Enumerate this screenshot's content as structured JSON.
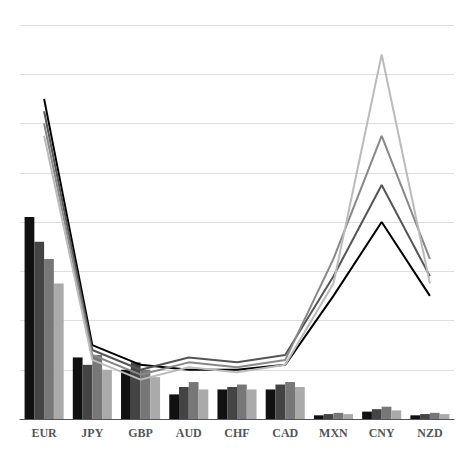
{
  "chart_data": {
    "type": "bar",
    "categories": [
      "EUR",
      "JPY",
      "GBP",
      "AUD",
      "CHF",
      "CAD",
      "MXN",
      "CNY",
      "NZD"
    ],
    "series": [
      {
        "type": "bar",
        "color": "#111111",
        "values": [
          82,
          25,
          20,
          10,
          12,
          12,
          1.5,
          3,
          1.5
        ]
      },
      {
        "type": "bar",
        "color": "#444444",
        "values": [
          72,
          22,
          23,
          13,
          13,
          14,
          2,
          4,
          2
        ]
      },
      {
        "type": "bar",
        "color": "#777777",
        "values": [
          65,
          26,
          20,
          15,
          14,
          15,
          2.5,
          5,
          2.5
        ]
      },
      {
        "type": "bar",
        "color": "#aaaaaa",
        "values": [
          55,
          20,
          17,
          12,
          12,
          13,
          2,
          3.5,
          2
        ]
      },
      {
        "type": "line",
        "color": "#000000",
        "values": [
          130,
          30,
          22,
          20,
          20,
          22,
          50,
          80,
          50
        ]
      },
      {
        "type": "line",
        "color": "#555555",
        "values": [
          125,
          28,
          20,
          25,
          23,
          26,
          58,
          95,
          58
        ]
      },
      {
        "type": "line",
        "color": "#888888",
        "values": [
          120,
          26,
          18,
          23,
          21,
          24,
          65,
          115,
          65
        ]
      },
      {
        "type": "line",
        "color": "#bbbbbb",
        "values": [
          115,
          24,
          16,
          21,
          19,
          22,
          55,
          148,
          55
        ]
      }
    ],
    "ylim": [
      0,
      160
    ],
    "yticks": [
      0,
      20,
      40,
      60,
      80,
      100,
      120,
      140,
      160
    ],
    "grid": true,
    "tick_labels": "x"
  }
}
